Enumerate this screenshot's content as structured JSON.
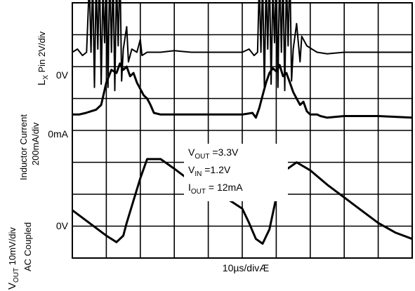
{
  "chart_data": {
    "type": "line",
    "title": "",
    "xlabel": "10µs/divÆ",
    "grid": true,
    "divisions": {
      "x": 10,
      "y": 8
    },
    "channels": [
      {
        "name_main": "L",
        "name_sub": "X",
        "name_rest": " Pin 2V/div",
        "zero_label": "0V",
        "zero_div": 1.55,
        "x": [
          0.0,
          0.15,
          0.3,
          0.42,
          0.5,
          0.55,
          0.6,
          0.65,
          0.7,
          0.75,
          0.8,
          0.85,
          0.9,
          0.95,
          1.0,
          1.05,
          1.1,
          1.15,
          1.2,
          1.25,
          1.3,
          1.35,
          1.4,
          1.45,
          1.5,
          1.6,
          1.65,
          1.75,
          1.9,
          2.0,
          2.05,
          2.2,
          2.6,
          3.0,
          3.5,
          4.0,
          5.0,
          5.2,
          5.35,
          5.45,
          5.5,
          5.55,
          5.6,
          5.65,
          5.7,
          5.75,
          5.8,
          5.85,
          5.9,
          5.95,
          6.0,
          6.05,
          6.1,
          6.15,
          6.2,
          6.25,
          6.3,
          6.35,
          6.4,
          6.45,
          6.5,
          6.6,
          6.7,
          6.75,
          6.9,
          7.05,
          7.2,
          7.5,
          8.0,
          8.5,
          9.0,
          9.5,
          10.0
        ],
        "y": [
          0.0,
          0.1,
          -0.1,
          0.0,
          2.2,
          0.0,
          2.3,
          -1.1,
          2.2,
          0.1,
          2.6,
          -1.0,
          2.0,
          0.3,
          2.5,
          -1.1,
          2.6,
          0.0,
          2.4,
          -1.2,
          2.3,
          0.2,
          2.7,
          -0.9,
          0.1,
          0.8,
          -0.3,
          0.1,
          0.0,
          0.4,
          -0.1,
          0.0,
          0.0,
          0.05,
          0.0,
          0.0,
          0.0,
          0.1,
          -0.1,
          0.0,
          2.2,
          0.0,
          2.3,
          -1.1,
          2.2,
          0.1,
          2.6,
          -1.0,
          2.0,
          0.3,
          2.5,
          -1.1,
          2.6,
          0.0,
          2.4,
          -1.2,
          2.3,
          0.2,
          2.7,
          -0.9,
          0.1,
          0.9,
          -0.3,
          0.5,
          0.2,
          0.1,
          0.0,
          -0.05,
          0.0,
          0.0,
          0.0,
          0.0,
          0.0
        ]
      },
      {
        "name_main": "Inductor Current",
        "name_sub": "",
        "name_rest": "200mA/div",
        "zero_label": "0mA",
        "zero_div": 3.5,
        "x": [
          0.0,
          0.2,
          0.4,
          0.55,
          0.7,
          0.85,
          1.0,
          1.15,
          1.3,
          1.4,
          1.5,
          1.6,
          1.7,
          1.8,
          1.9,
          2.0,
          2.1,
          2.2,
          2.3,
          2.4,
          2.6,
          3.0,
          4.0,
          5.0,
          5.3,
          5.4,
          5.5,
          5.6,
          5.7,
          5.8,
          5.9,
          6.0,
          6.1,
          6.2,
          6.3,
          6.4,
          6.5,
          6.6,
          6.7,
          6.8,
          6.9,
          7.0,
          7.2,
          7.3,
          7.5,
          8.0,
          9.0,
          10.0
        ],
        "y": [
          0.0,
          0.0,
          0.05,
          0.1,
          0.15,
          0.3,
          1.0,
          1.4,
          1.3,
          1.6,
          1.4,
          1.5,
          1.2,
          1.3,
          1.0,
          0.8,
          0.6,
          0.5,
          0.3,
          0.05,
          0.0,
          0.0,
          0.0,
          0.0,
          0.05,
          -0.1,
          0.2,
          0.6,
          1.0,
          1.3,
          1.45,
          1.35,
          1.55,
          1.2,
          1.3,
          1.0,
          0.7,
          0.5,
          0.3,
          0.4,
          0.1,
          0.0,
          0.0,
          -0.05,
          -0.1,
          -0.05,
          -0.05,
          -0.1
        ]
      },
      {
        "name_main": "V",
        "name_sub": "OUT",
        "name_rest": " 10mV/div",
        "name_line2": "AC Coupled",
        "zero_label": "0V",
        "zero_div": 6.5,
        "x": [
          0.0,
          0.5,
          1.0,
          1.3,
          1.5,
          1.6,
          1.8,
          2.0,
          2.2,
          2.6,
          3.0,
          3.5,
          4.5,
          5.0,
          5.2,
          5.4,
          5.6,
          5.8,
          6.0,
          6.2,
          6.6,
          7.0,
          7.5,
          8.0,
          9.0,
          9.5,
          10.0
        ],
        "y": [
          0.0,
          -0.4,
          -0.8,
          -1.0,
          -0.8,
          -0.4,
          0.3,
          1.0,
          1.6,
          1.6,
          1.3,
          0.9,
          0.4,
          0.05,
          -0.4,
          -0.9,
          -1.05,
          -0.6,
          0.4,
          1.2,
          1.5,
          1.25,
          0.8,
          0.4,
          -0.4,
          -0.7,
          -0.9
        ]
      }
    ],
    "annotations": [
      {
        "main": "V",
        "sub": "OUT",
        "rest": " =3.3V"
      },
      {
        "main": "V",
        "sub": "IN",
        "rest": " =1.2V"
      },
      {
        "main": "I",
        "sub": "OUT",
        "rest": "  = 12mA"
      }
    ]
  }
}
